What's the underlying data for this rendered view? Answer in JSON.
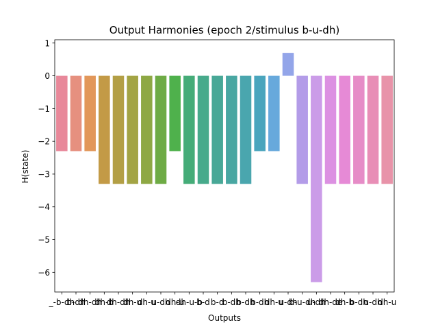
{
  "chart_data": {
    "type": "bar",
    "title": "Output Harmonies (epoch 2/stimulus b-u-dh)",
    "xlabel": "Outputs",
    "ylabel": "H(state)",
    "ylim": [
      -6.6,
      1.1
    ],
    "yticks": [
      1,
      0,
      -1,
      -2,
      -3,
      -4,
      -5,
      -6
    ],
    "ytick_labels": [
      "1",
      "0",
      "−1",
      "−2",
      "−3",
      "−4",
      "−5",
      "−6"
    ],
    "grid": false,
    "categories": [
      "_-b-dh",
      "b-dh",
      "dh-dh",
      "dh-b",
      "dh-dh",
      "dh-u",
      "dh-u",
      "u-dh",
      "dh-u",
      "dh-u-b",
      "b-d",
      "b-d",
      "b-dh",
      "b-dh",
      "b-dh",
      "dh-u",
      "u-dh",
      "b-u-dh",
      "u-dh",
      "dh-de",
      "dh-b",
      "b-dh",
      "u-dh",
      "dh-u"
    ],
    "values": [
      -2.3,
      -2.3,
      -2.3,
      -3.3,
      -3.3,
      -3.3,
      -3.3,
      -3.3,
      -2.3,
      -3.3,
      -3.3,
      -3.3,
      -3.3,
      -3.3,
      -2.3,
      -2.3,
      0.7,
      -3.3,
      -6.3,
      -3.3,
      -3.3,
      -3.3,
      -3.3,
      -3.3
    ],
    "colors": [
      "#e8889a",
      "#e6907f",
      "#e2975a",
      "#c39a46",
      "#b39f45",
      "#a3a444",
      "#8ea844",
      "#6eab45",
      "#4fb14c",
      "#45ac78",
      "#47aa8b",
      "#48a897",
      "#49a7a2",
      "#4aa6ae",
      "#4aa5bd",
      "#67a9dc",
      "#93a5e9",
      "#b39ce8",
      "#cb9ce8",
      "#dc91e2",
      "#e68ad6",
      "#e68cc7",
      "#e88eb6",
      "#e893a9"
    ]
  }
}
